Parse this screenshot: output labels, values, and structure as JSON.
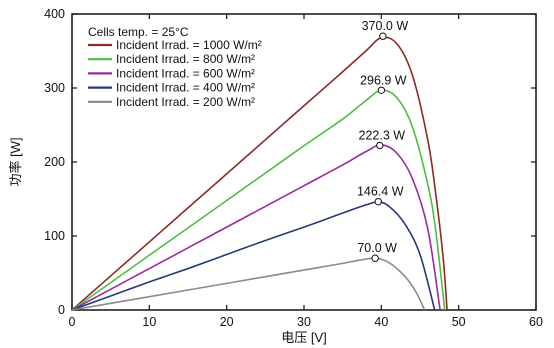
{
  "chart_data": {
    "type": "line",
    "xlabel": "电压 [V]",
    "ylabel": "功率 [W]",
    "xlim": [
      0,
      60
    ],
    "ylim": [
      0,
      400
    ],
    "xticks": [
      0,
      10,
      20,
      30,
      40,
      50,
      60
    ],
    "yticks": [
      0,
      100,
      200,
      300,
      400
    ],
    "grid": false,
    "legend_title": "Cells temp. = 25°C",
    "legend_position": "top-left",
    "series": [
      {
        "name": "Incident Irrad. = 1000 W/m²",
        "color": "#8b2a24",
        "x": [
          0,
          5,
          10,
          15,
          20,
          25,
          30,
          35,
          38,
          40,
          42,
          44,
          46,
          47,
          48,
          48.5
        ],
        "y": [
          0,
          46,
          92,
          138,
          184,
          230,
          276,
          322,
          350,
          368,
          360,
          318,
          230,
          160,
          70,
          0
        ],
        "peak": {
          "x": 40.2,
          "y": 370.0,
          "label": "370.0 W"
        }
      },
      {
        "name": "Incident Irrad. = 800 W/m²",
        "color": "#4cbf3f",
        "x": [
          0,
          5,
          10,
          15,
          20,
          25,
          30,
          35,
          38,
          40,
          42,
          44,
          46,
          47,
          48.2
        ],
        "y": [
          0,
          37,
          74,
          111,
          148,
          185,
          222,
          258,
          283,
          297,
          287,
          248,
          170,
          110,
          0
        ],
        "peak": {
          "x": 40.0,
          "y": 296.9,
          "label": "296.9 W"
        }
      },
      {
        "name": "Incident Irrad. = 600 W/m²",
        "color": "#9a2a9e",
        "x": [
          0,
          5,
          10,
          15,
          20,
          25,
          30,
          35,
          38,
          40,
          42,
          44,
          46,
          47.6
        ],
        "y": [
          0,
          28,
          56,
          84,
          112,
          140,
          168,
          196,
          214,
          223,
          212,
          178,
          110,
          0
        ],
        "peak": {
          "x": 39.8,
          "y": 222.3,
          "label": "222.3 W"
        }
      },
      {
        "name": "Incident Irrad. = 400 W/m²",
        "color": "#23397a",
        "x": [
          0,
          5,
          10,
          15,
          20,
          25,
          30,
          35,
          38,
          39.6,
          41,
          43,
          45,
          46.9
        ],
        "y": [
          0,
          19,
          38,
          56,
          75,
          94,
          112,
          131,
          142,
          146,
          140,
          117,
          75,
          0
        ],
        "peak": {
          "x": 39.6,
          "y": 146.4,
          "label": "146.4 W"
        }
      },
      {
        "name": "Incident Irrad. = 200 W/m²",
        "color": "#8a8a8a",
        "x": [
          0,
          5,
          10,
          15,
          20,
          25,
          30,
          35,
          37,
          39.2,
          41,
          43,
          44.5,
          45.6
        ],
        "y": [
          0,
          9,
          18,
          27,
          36,
          45,
          54,
          63,
          67,
          70,
          64,
          46,
          24,
          0
        ],
        "peak": {
          "x": 39.2,
          "y": 70.0,
          "label": "70.0 W"
        }
      }
    ]
  }
}
